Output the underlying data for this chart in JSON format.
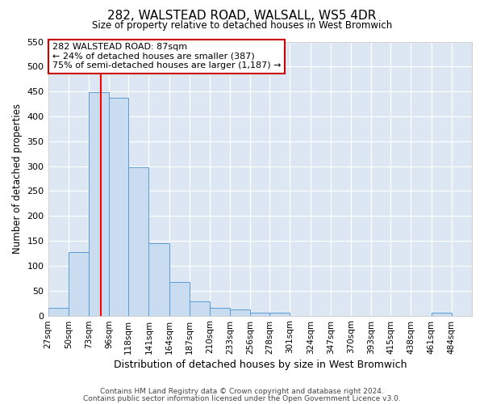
{
  "title": "282, WALSTEAD ROAD, WALSALL, WS5 4DR",
  "subtitle": "Size of property relative to detached houses in West Bromwich",
  "xlabel": "Distribution of detached houses by size in West Bromwich",
  "ylabel": "Number of detached properties",
  "bar_color": "#c9dcf0",
  "bar_edge_color": "#5b9bd5",
  "background_color": "#dce7f3",
  "bin_edges": [
    27,
    50,
    73,
    96,
    118,
    141,
    164,
    187,
    210,
    233,
    256,
    278,
    301,
    324,
    347,
    370,
    393,
    415,
    438,
    461,
    484,
    507
  ],
  "bar_heights": [
    15,
    128,
    448,
    437,
    297,
    145,
    68,
    28,
    15,
    12,
    6,
    5,
    0,
    0,
    0,
    0,
    0,
    0,
    0,
    6,
    0
  ],
  "tick_labels": [
    "27sqm",
    "50sqm",
    "73sqm",
    "96sqm",
    "118sqm",
    "141sqm",
    "164sqm",
    "187sqm",
    "210sqm",
    "233sqm",
    "256sqm",
    "278sqm",
    "301sqm",
    "324sqm",
    "347sqm",
    "370sqm",
    "393sqm",
    "415sqm",
    "438sqm",
    "461sqm",
    "484sqm"
  ],
  "ylim": [
    0,
    550
  ],
  "yticks": [
    0,
    50,
    100,
    150,
    200,
    250,
    300,
    350,
    400,
    450,
    500,
    550
  ],
  "vline_x": 87,
  "annotation_title": "282 WALSTEAD ROAD: 87sqm",
  "annotation_line1": "← 24% of detached houses are smaller (387)",
  "annotation_line2": "75% of semi-detached houses are larger (1,187) →",
  "annotation_box_facecolor": "#ffffff",
  "annotation_box_edgecolor": "#cc0000",
  "footer_line1": "Contains HM Land Registry data © Crown copyright and database right 2024.",
  "footer_line2": "Contains public sector information licensed under the Open Government Licence v3.0."
}
